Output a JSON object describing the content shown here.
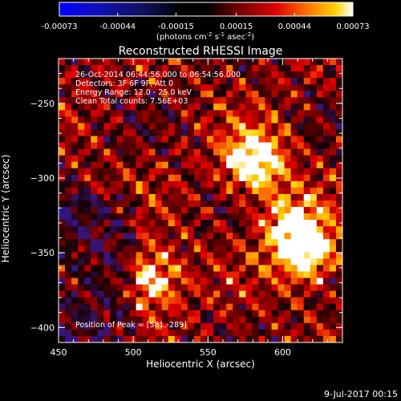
{
  "colorbar": {
    "ticks": [
      "-0.00073",
      "-0.00044",
      "-0.00015",
      "0.00015",
      "0.00044",
      "0.00073"
    ],
    "range": [
      -0.00073,
      0.00073
    ],
    "units": "(photons cm",
    "units_sup1": "-2",
    "units_mid": " s",
    "units_sup2": "-1",
    "units_end": " asec",
    "units_sup3": "-2",
    "units_close": ")",
    "colormap": "blue-black-red-yellow-white"
  },
  "image": {
    "title": "Reconstructed RHESSI Image",
    "info_lines": [
      "26-Oct-2014 06:44:56.000 to 06:54:56.000",
      "Detectors: 3F 6F 9F, Att 0",
      "Energy Range: 12.0 - 25.0 keV",
      "Clean     Total counts: 7.56E+03"
    ],
    "peak_label": "Position of Peak = [581,-289]",
    "peak": {
      "x": 581,
      "y": -289
    },
    "xlabel": "Heliocentric X (arcsec)",
    "ylabel": "Heliocentric Y (arcsec)",
    "xlim": [
      450,
      640
    ],
    "ylim": [
      -410,
      -220
    ],
    "xticks": [
      450,
      500,
      550,
      600
    ],
    "yticks": [
      -250,
      -300,
      -350,
      -400
    ],
    "bright_sources": [
      {
        "x": 581,
        "y": -289
      },
      {
        "x": 616,
        "y": -350
      },
      {
        "x": 512,
        "y": -368
      },
      {
        "x": 605,
        "y": -330
      }
    ]
  },
  "footer": {
    "date": "9-Jul-2017 00:15"
  }
}
